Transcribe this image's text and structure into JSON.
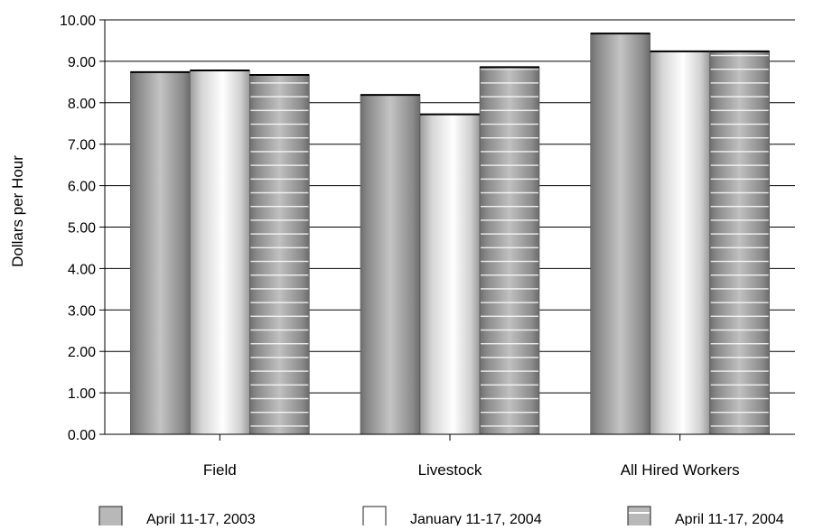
{
  "chart_data": {
    "type": "bar",
    "title": "",
    "xlabel": "",
    "ylabel": "Dollars per Hour",
    "ylim": [
      0,
      10
    ],
    "ytick_step": 1,
    "ytick_labels": [
      "0.00",
      "1.00",
      "2.00",
      "3.00",
      "4.00",
      "5.00",
      "6.00",
      "7.00",
      "8.00",
      "9.00",
      "10.00"
    ],
    "grid": true,
    "legend_position": "bottom",
    "categories": [
      "Field",
      "Livestock",
      "All Hired Workers"
    ],
    "series": [
      {
        "name": "April 11-17, 2003",
        "values": [
          8.74,
          8.19,
          9.67
        ],
        "style": "dark-gradient",
        "color": "#a8a8a8"
      },
      {
        "name": "January 11-17, 2004",
        "values": [
          8.78,
          7.72,
          9.24
        ],
        "style": "light-gradient",
        "color": "#f4f4f4"
      },
      {
        "name": "April 11-17, 2004",
        "values": [
          8.67,
          8.86,
          9.24
        ],
        "style": "striped-gradient",
        "color": "#a8a8a8"
      }
    ]
  }
}
